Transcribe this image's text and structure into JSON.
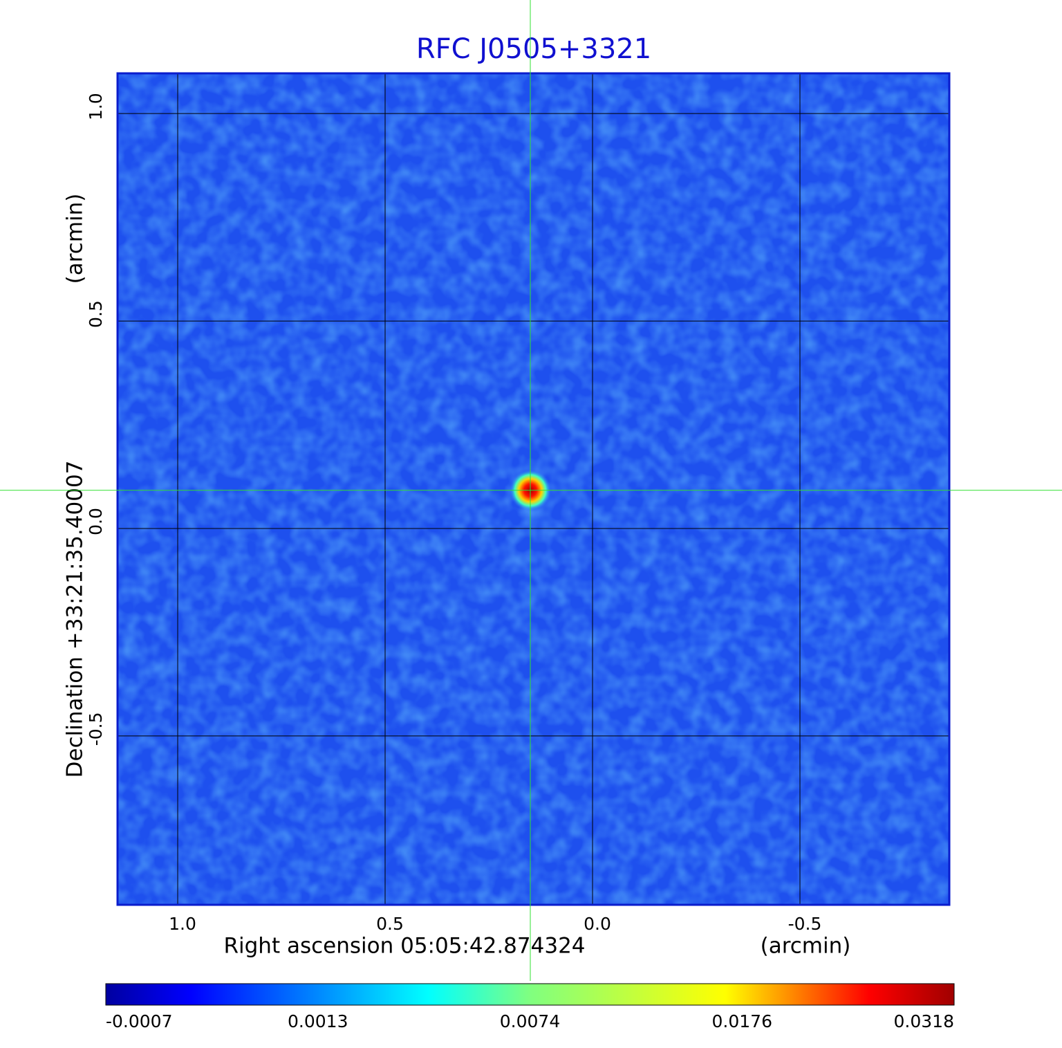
{
  "chart_data": {
    "type": "image",
    "title": "RFC J0505+3321",
    "x_label": "Right ascension  05:05:42.874324",
    "x_unit": "(arcmin)",
    "y_label": "Declination  +33:21:35.40007",
    "y_unit": "(arcmin)",
    "xlim": [
      1.145,
      -0.86
    ],
    "ylim": [
      -0.907,
      1.097
    ],
    "xticks": [
      {
        "value": 1,
        "label": "1.0"
      },
      0.5,
      {
        "value": 0,
        "label": "0.0"
      },
      -0.5
    ],
    "yticks": [
      {
        "value": 1,
        "label": "1.0"
      },
      0.5,
      {
        "value": 0,
        "label": "0.0"
      },
      -0.5
    ],
    "grid": true,
    "peak": {
      "x": 0.15,
      "y": 0.092
    },
    "colorbar_ticks": [
      -0.0007,
      0.0013,
      0.0074,
      0.0176,
      0.0318
    ]
  }
}
